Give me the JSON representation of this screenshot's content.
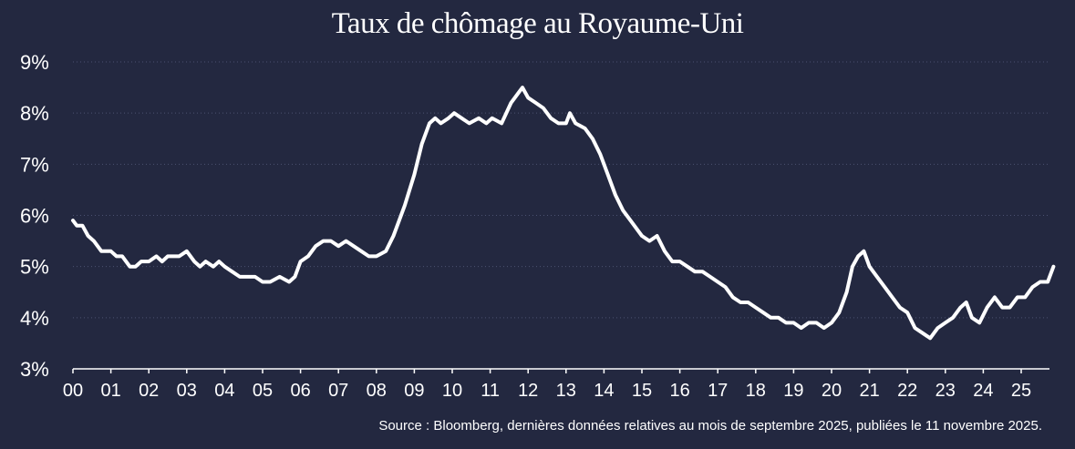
{
  "chart_data": {
    "type": "line",
    "title": "Taux de chômage au Royaume-Uni",
    "source": "Source : Bloomberg, dernières données relatives au mois de septembre 2025, publiées le 11 novembre 2025.",
    "xlabel": "",
    "ylabel": "",
    "ylim": [
      3,
      9
    ],
    "xlim": [
      2000,
      2025.85
    ],
    "grid": "horizontal dotted",
    "legend": "none",
    "y_ticks": [
      {
        "value": 3,
        "label": "3%"
      },
      {
        "value": 4,
        "label": "4%"
      },
      {
        "value": 5,
        "label": "5%"
      },
      {
        "value": 6,
        "label": "6%"
      },
      {
        "value": 7,
        "label": "7%"
      },
      {
        "value": 8,
        "label": "8%"
      },
      {
        "value": 9,
        "label": "9%"
      }
    ],
    "x_ticks": [
      {
        "value": 2000,
        "label": "00"
      },
      {
        "value": 2001,
        "label": "01"
      },
      {
        "value": 2002,
        "label": "02"
      },
      {
        "value": 2003,
        "label": "03"
      },
      {
        "value": 2004,
        "label": "04"
      },
      {
        "value": 2005,
        "label": "05"
      },
      {
        "value": 2006,
        "label": "06"
      },
      {
        "value": 2007,
        "label": "07"
      },
      {
        "value": 2008,
        "label": "08"
      },
      {
        "value": 2009,
        "label": "09"
      },
      {
        "value": 2010,
        "label": "10"
      },
      {
        "value": 2011,
        "label": "11"
      },
      {
        "value": 2012,
        "label": "12"
      },
      {
        "value": 2013,
        "label": "13"
      },
      {
        "value": 2014,
        "label": "14"
      },
      {
        "value": 2015,
        "label": "15"
      },
      {
        "value": 2016,
        "label": "16"
      },
      {
        "value": 2017,
        "label": "17"
      },
      {
        "value": 2018,
        "label": "18"
      },
      {
        "value": 2019,
        "label": "19"
      },
      {
        "value": 2020,
        "label": "20"
      },
      {
        "value": 2021,
        "label": "21"
      },
      {
        "value": 2022,
        "label": "22"
      },
      {
        "value": 2023,
        "label": "23"
      },
      {
        "value": 2024,
        "label": "24"
      },
      {
        "value": 2025,
        "label": "25"
      }
    ],
    "series": [
      {
        "color": "#ffffff",
        "x": [
          2000.0,
          2000.1,
          2000.25,
          2000.4,
          2000.55,
          2000.75,
          2001.0,
          2001.15,
          2001.3,
          2001.5,
          2001.65,
          2001.8,
          2002.0,
          2002.2,
          2002.35,
          2002.5,
          2002.65,
          2002.8,
          2003.0,
          2003.2,
          2003.35,
          2003.5,
          2003.7,
          2003.85,
          2004.0,
          2004.2,
          2004.4,
          2004.6,
          2004.8,
          2005.0,
          2005.2,
          2005.45,
          2005.7,
          2005.85,
          2006.0,
          2006.2,
          2006.4,
          2006.6,
          2006.8,
          2007.0,
          2007.2,
          2007.4,
          2007.6,
          2007.8,
          2008.0,
          2008.25,
          2008.45,
          2008.6,
          2008.75,
          2009.0,
          2009.2,
          2009.4,
          2009.55,
          2009.7,
          2009.9,
          2010.05,
          2010.25,
          2010.45,
          2010.7,
          2010.9,
          2011.05,
          2011.3,
          2011.55,
          2011.75,
          2011.85,
          2012.0,
          2012.2,
          2012.4,
          2012.6,
          2012.8,
          2013.0,
          2013.1,
          2013.25,
          2013.5,
          2013.7,
          2013.9,
          2014.1,
          2014.3,
          2014.5,
          2014.7,
          2015.0,
          2015.2,
          2015.4,
          2015.6,
          2015.8,
          2016.0,
          2016.2,
          2016.4,
          2016.6,
          2016.8,
          2017.0,
          2017.2,
          2017.4,
          2017.6,
          2017.8,
          2018.0,
          2018.2,
          2018.4,
          2018.6,
          2018.8,
          2019.0,
          2019.2,
          2019.4,
          2019.6,
          2019.8,
          2020.0,
          2020.2,
          2020.4,
          2020.55,
          2020.7,
          2020.85,
          2021.0,
          2021.2,
          2021.4,
          2021.6,
          2021.8,
          2022.0,
          2022.2,
          2022.4,
          2022.6,
          2022.8,
          2023.0,
          2023.2,
          2023.4,
          2023.55,
          2023.7,
          2023.9,
          2024.1,
          2024.3,
          2024.5,
          2024.7,
          2024.9,
          2025.1,
          2025.3,
          2025.5,
          2025.7,
          2025.85
        ],
        "y": [
          5.9,
          5.8,
          5.8,
          5.6,
          5.5,
          5.3,
          5.3,
          5.2,
          5.2,
          5.0,
          5.0,
          5.1,
          5.1,
          5.2,
          5.1,
          5.2,
          5.2,
          5.2,
          5.3,
          5.1,
          5.0,
          5.1,
          5.0,
          5.1,
          5.0,
          4.9,
          4.8,
          4.8,
          4.8,
          4.7,
          4.7,
          4.8,
          4.7,
          4.8,
          5.1,
          5.2,
          5.4,
          5.5,
          5.5,
          5.4,
          5.5,
          5.4,
          5.3,
          5.2,
          5.2,
          5.3,
          5.6,
          5.9,
          6.2,
          6.8,
          7.4,
          7.8,
          7.9,
          7.8,
          7.9,
          8.0,
          7.9,
          7.8,
          7.9,
          7.8,
          7.9,
          7.8,
          8.2,
          8.4,
          8.5,
          8.3,
          8.2,
          8.1,
          7.9,
          7.8,
          7.8,
          8.0,
          7.8,
          7.7,
          7.5,
          7.2,
          6.8,
          6.4,
          6.1,
          5.9,
          5.6,
          5.5,
          5.6,
          5.3,
          5.1,
          5.1,
          5.0,
          4.9,
          4.9,
          4.8,
          4.7,
          4.6,
          4.4,
          4.3,
          4.3,
          4.2,
          4.1,
          4.0,
          4.0,
          3.9,
          3.9,
          3.8,
          3.9,
          3.9,
          3.8,
          3.9,
          4.1,
          4.5,
          5.0,
          5.2,
          5.3,
          5.0,
          4.8,
          4.6,
          4.4,
          4.2,
          4.1,
          3.8,
          3.7,
          3.6,
          3.8,
          3.9,
          4.0,
          4.2,
          4.3,
          4.0,
          3.9,
          4.2,
          4.4,
          4.2,
          4.2,
          4.4,
          4.4,
          4.6,
          4.7,
          4.7,
          5.0
        ]
      }
    ]
  }
}
